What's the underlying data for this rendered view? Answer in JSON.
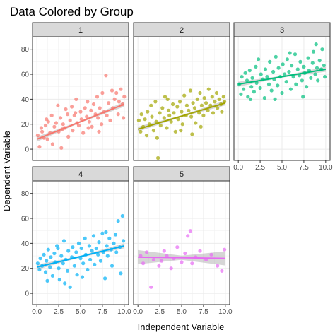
{
  "chart_data": {
    "type": "scatter",
    "title": "Data Colored by Group",
    "xlabel": "Independent Variable",
    "ylabel": "Dependent Variable",
    "xlim": [
      -0.5,
      10.5
    ],
    "ylim": [
      -9,
      90
    ],
    "x_ticks": [
      "0.0",
      "2.5",
      "5.0",
      "7.5",
      "10.0"
    ],
    "y_ticks": [
      "0",
      "20",
      "40",
      "60",
      "80"
    ],
    "x_tick_values": [
      0,
      2.5,
      5,
      7.5,
      10
    ],
    "y_tick_values": [
      0,
      20,
      40,
      60,
      80
    ],
    "grid": true,
    "layout": "facet_wrap 3 columns",
    "facets": [
      {
        "label": "1",
        "color": "#F8766D",
        "trend": {
          "y0": 8,
          "y1": 36
        },
        "points": [
          [
            0.1,
            11
          ],
          [
            0.3,
            2
          ],
          [
            0.5,
            17
          ],
          [
            0.6,
            14
          ],
          [
            0.8,
            9
          ],
          [
            1.0,
            19
          ],
          [
            1.2,
            8
          ],
          [
            1.3,
            22
          ],
          [
            1.5,
            13
          ],
          [
            1.7,
            27
          ],
          [
            1.8,
            4
          ],
          [
            2.0,
            18
          ],
          [
            2.2,
            21
          ],
          [
            2.4,
            35
          ],
          [
            2.5,
            14
          ],
          [
            2.7,
            25
          ],
          [
            2.8,
            1
          ],
          [
            3.0,
            20
          ],
          [
            3.2,
            17
          ],
          [
            3.3,
            32
          ],
          [
            3.5,
            28
          ],
          [
            3.6,
            10
          ],
          [
            3.8,
            23
          ],
          [
            4.0,
            34
          ],
          [
            4.1,
            15
          ],
          [
            4.3,
            27
          ],
          [
            4.5,
            40
          ],
          [
            4.6,
            21
          ],
          [
            4.8,
            19
          ],
          [
            5.0,
            30
          ],
          [
            5.1,
            24
          ],
          [
            5.3,
            13
          ],
          [
            5.5,
            33
          ],
          [
            5.7,
            26
          ],
          [
            5.8,
            38
          ],
          [
            6.0,
            22
          ],
          [
            6.2,
            31
          ],
          [
            6.3,
            18
          ],
          [
            6.5,
            36
          ],
          [
            6.7,
            28
          ],
          [
            6.9,
            42
          ],
          [
            7.0,
            25
          ],
          [
            7.2,
            33
          ],
          [
            7.4,
            20
          ],
          [
            7.5,
            45
          ],
          [
            7.7,
            30
          ],
          [
            7.9,
            59
          ],
          [
            8.0,
            27
          ],
          [
            8.2,
            37
          ],
          [
            8.4,
            23
          ],
          [
            8.6,
            47
          ],
          [
            8.7,
            33
          ],
          [
            8.9,
            40
          ],
          [
            9.1,
            45
          ],
          [
            9.3,
            28
          ],
          [
            9.4,
            38
          ],
          [
            9.6,
            48
          ],
          [
            9.8,
            36
          ],
          [
            9.9,
            25
          ],
          [
            10.0,
            42
          ],
          [
            2.9,
            16
          ],
          [
            5.9,
            17
          ],
          [
            7.1,
            14
          ],
          [
            4.4,
            29
          ],
          [
            1.1,
            24
          ]
        ]
      },
      {
        "label": "2",
        "color": "#A3A500",
        "trend": {
          "y0": 16,
          "y1": 37
        },
        "points": [
          [
            0.1,
            23
          ],
          [
            0.3,
            14
          ],
          [
            0.4,
            28
          ],
          [
            0.6,
            18
          ],
          [
            0.8,
            24
          ],
          [
            1.0,
            11
          ],
          [
            1.1,
            30
          ],
          [
            1.3,
            20
          ],
          [
            1.5,
            35
          ],
          [
            1.6,
            26
          ],
          [
            1.8,
            15
          ],
          [
            2.0,
            38
          ],
          [
            2.1,
            22
          ],
          [
            2.3,
            -7
          ],
          [
            2.5,
            29
          ],
          [
            2.6,
            19
          ],
          [
            2.8,
            33
          ],
          [
            3.0,
            25
          ],
          [
            3.1,
            42
          ],
          [
            3.3,
            17
          ],
          [
            3.5,
            31
          ],
          [
            3.6,
            27
          ],
          [
            3.8,
            22
          ],
          [
            4.0,
            36
          ],
          [
            4.1,
            29
          ],
          [
            4.3,
            14
          ],
          [
            4.5,
            34
          ],
          [
            4.6,
            24
          ],
          [
            4.8,
            38
          ],
          [
            5.0,
            30
          ],
          [
            5.1,
            20
          ],
          [
            5.3,
            43
          ],
          [
            5.5,
            27
          ],
          [
            5.6,
            35
          ],
          [
            5.8,
            31
          ],
          [
            6.0,
            47
          ],
          [
            6.1,
            26
          ],
          [
            6.3,
            37
          ],
          [
            6.5,
            33
          ],
          [
            6.6,
            21
          ],
          [
            6.8,
            40
          ],
          [
            7.0,
            29
          ],
          [
            7.1,
            45
          ],
          [
            7.3,
            35
          ],
          [
            7.5,
            27
          ],
          [
            7.6,
            41
          ],
          [
            7.8,
            37
          ],
          [
            8.0,
            31
          ],
          [
            8.1,
            48
          ],
          [
            8.3,
            35
          ],
          [
            8.5,
            42
          ],
          [
            8.6,
            29
          ],
          [
            8.8,
            38
          ],
          [
            9.0,
            45
          ],
          [
            9.1,
            33
          ],
          [
            9.3,
            40
          ],
          [
            9.5,
            36
          ],
          [
            9.6,
            30
          ],
          [
            9.8,
            42
          ],
          [
            9.9,
            38
          ],
          [
            2.2,
            9
          ],
          [
            4.9,
            15
          ],
          [
            7.2,
            18
          ],
          [
            3.4,
            40
          ],
          [
            6.2,
            12
          ]
        ]
      },
      {
        "label": "3",
        "color": "#00BF7D",
        "trend": {
          "y0": 52,
          "y1": 64
        },
        "points": [
          [
            0.1,
            52
          ],
          [
            0.3,
            44
          ],
          [
            0.4,
            58
          ],
          [
            0.6,
            48
          ],
          [
            0.8,
            61
          ],
          [
            1.0,
            55
          ],
          [
            1.1,
            42
          ],
          [
            1.3,
            63
          ],
          [
            1.5,
            50
          ],
          [
            1.6,
            57
          ],
          [
            1.8,
            46
          ],
          [
            2.0,
            66
          ],
          [
            2.1,
            53
          ],
          [
            2.3,
            72
          ],
          [
            2.5,
            49
          ],
          [
            2.6,
            60
          ],
          [
            2.8,
            56
          ],
          [
            3.0,
            41
          ],
          [
            3.1,
            64
          ],
          [
            3.3,
            58
          ],
          [
            3.5,
            52
          ],
          [
            3.6,
            70
          ],
          [
            3.8,
            47
          ],
          [
            4.0,
            62
          ],
          [
            4.1,
            56
          ],
          [
            4.3,
            74
          ],
          [
            4.5,
            51
          ],
          [
            4.6,
            65
          ],
          [
            4.8,
            58
          ],
          [
            5.0,
            45
          ],
          [
            5.1,
            68
          ],
          [
            5.3,
            60
          ],
          [
            5.5,
            54
          ],
          [
            5.6,
            72
          ],
          [
            5.8,
            62
          ],
          [
            6.0,
            48
          ],
          [
            6.1,
            67
          ],
          [
            6.3,
            58
          ],
          [
            6.5,
            76
          ],
          [
            6.6,
            52
          ],
          [
            6.8,
            64
          ],
          [
            7.0,
            59
          ],
          [
            7.1,
            70
          ],
          [
            7.3,
            55
          ],
          [
            7.5,
            66
          ],
          [
            7.6,
            61
          ],
          [
            7.8,
            50
          ],
          [
            8.0,
            73
          ],
          [
            8.1,
            63
          ],
          [
            8.3,
            57
          ],
          [
            8.5,
            69
          ],
          [
            8.6,
            78
          ],
          [
            8.8,
            60
          ],
          [
            9.0,
            65
          ],
          [
            9.1,
            55
          ],
          [
            9.3,
            71
          ],
          [
            9.5,
            64
          ],
          [
            9.6,
            80
          ],
          [
            9.8,
            67
          ],
          [
            9.9,
            58
          ],
          [
            1.4,
            40
          ],
          [
            4.2,
            40
          ],
          [
            7.4,
            42
          ],
          [
            8.9,
            84
          ],
          [
            5.9,
            77
          ]
        ]
      },
      {
        "label": "4",
        "color": "#00B0F6",
        "trend": {
          "y0": 21,
          "y1": 38
        },
        "points": [
          [
            0.1,
            24
          ],
          [
            0.3,
            19
          ],
          [
            0.4,
            28
          ],
          [
            0.6,
            22
          ],
          [
            0.8,
            31
          ],
          [
            1.0,
            17
          ],
          [
            1.1,
            26
          ],
          [
            1.3,
            35
          ],
          [
            1.5,
            21
          ],
          [
            1.6,
            29
          ],
          [
            1.8,
            14
          ],
          [
            2.0,
            32
          ],
          [
            2.1,
            25
          ],
          [
            2.3,
            38
          ],
          [
            2.5,
            20
          ],
          [
            2.6,
            11
          ],
          [
            2.8,
            30
          ],
          [
            3.0,
            24
          ],
          [
            3.1,
            42
          ],
          [
            3.3,
            27
          ],
          [
            3.5,
            18
          ],
          [
            3.6,
            34
          ],
          [
            3.8,
            5
          ],
          [
            4.0,
            29
          ],
          [
            4.1,
            37
          ],
          [
            4.3,
            22
          ],
          [
            4.5,
            33
          ],
          [
            4.6,
            15
          ],
          [
            4.8,
            40
          ],
          [
            5.0,
            28
          ],
          [
            5.1,
            36
          ],
          [
            5.3,
            24
          ],
          [
            5.5,
            44
          ],
          [
            5.6,
            31
          ],
          [
            5.8,
            19
          ],
          [
            6.0,
            38
          ],
          [
            6.1,
            27
          ],
          [
            6.3,
            34
          ],
          [
            6.5,
            46
          ],
          [
            6.6,
            23
          ],
          [
            6.8,
            36
          ],
          [
            7.0,
            31
          ],
          [
            7.1,
            41
          ],
          [
            7.3,
            26
          ],
          [
            7.5,
            48
          ],
          [
            7.6,
            33
          ],
          [
            7.8,
            12
          ],
          [
            8.0,
            38
          ],
          [
            8.1,
            30
          ],
          [
            8.3,
            44
          ],
          [
            8.5,
            35
          ],
          [
            8.6,
            22
          ],
          [
            8.8,
            40
          ],
          [
            9.0,
            47
          ],
          [
            9.1,
            33
          ],
          [
            9.3,
            58
          ],
          [
            9.5,
            37
          ],
          [
            9.6,
            16
          ],
          [
            9.8,
            62
          ],
          [
            9.9,
            42
          ],
          [
            1.2,
            10
          ],
          [
            3.2,
            8
          ],
          [
            5.2,
            13
          ],
          [
            7.9,
            49
          ],
          [
            2.4,
            36
          ]
        ]
      },
      {
        "label": "5",
        "color": "#E76BF3",
        "trend": {
          "y0": 29,
          "y1": 28
        },
        "points": [
          [
            0.3,
            30
          ],
          [
            0.6,
            24
          ],
          [
            1.0,
            33
          ],
          [
            1.5,
            5
          ],
          [
            1.8,
            27
          ],
          [
            2.4,
            22
          ],
          [
            3.0,
            34
          ],
          [
            3.3,
            30
          ],
          [
            3.8,
            20
          ],
          [
            4.1,
            28
          ],
          [
            4.5,
            37
          ],
          [
            5.0,
            25
          ],
          [
            5.4,
            32
          ],
          [
            5.7,
            46
          ],
          [
            6.0,
            50
          ],
          [
            6.2,
            24
          ],
          [
            6.6,
            29
          ],
          [
            7.1,
            34
          ],
          [
            7.8,
            27
          ],
          [
            8.4,
            31
          ],
          [
            9.1,
            22
          ],
          [
            9.6,
            18
          ],
          [
            9.9,
            35
          ],
          [
            2.7,
            26
          ]
        ]
      }
    ]
  }
}
